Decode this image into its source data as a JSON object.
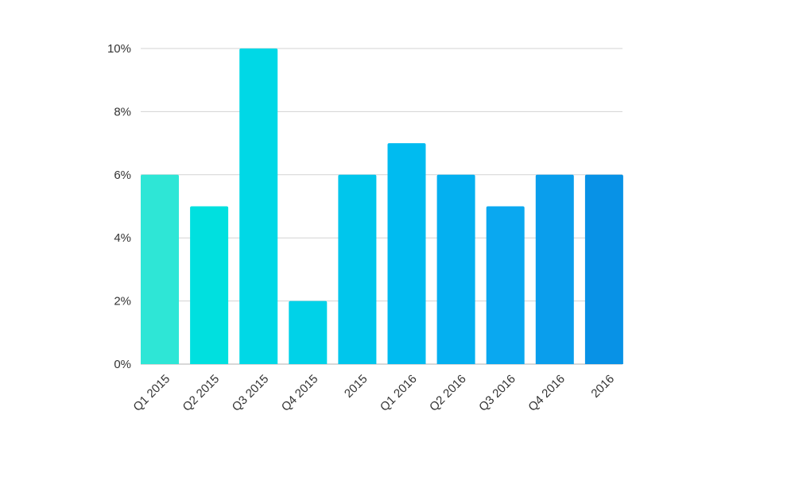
{
  "chart_data": {
    "type": "bar",
    "categories": [
      "Q1 2015",
      "Q2 2015",
      "Q3 2015",
      "Q4 2015",
      "2015",
      "Q1 2016",
      "Q2 2016",
      "Q3 2016",
      "Q4 2016",
      "2016"
    ],
    "values": [
      6,
      5,
      10,
      2,
      6,
      7,
      6,
      5,
      6,
      6
    ],
    "bar_colors": [
      "#2ee6d6",
      "#00e0df",
      "#00d8e6",
      "#00d2e8",
      "#00c6ec",
      "#00bbf0",
      "#04b0f0",
      "#0aa8f0",
      "#0a9eec",
      "#0892e6"
    ],
    "ylim": [
      0,
      10
    ],
    "yticks": [
      0,
      2,
      4,
      6,
      8,
      10
    ],
    "ytick_labels": [
      "0%",
      "2%",
      "4%",
      "6%",
      "8%",
      "10%"
    ],
    "title": "",
    "xlabel": "",
    "ylabel": "",
    "grid": true,
    "legend": "none"
  }
}
